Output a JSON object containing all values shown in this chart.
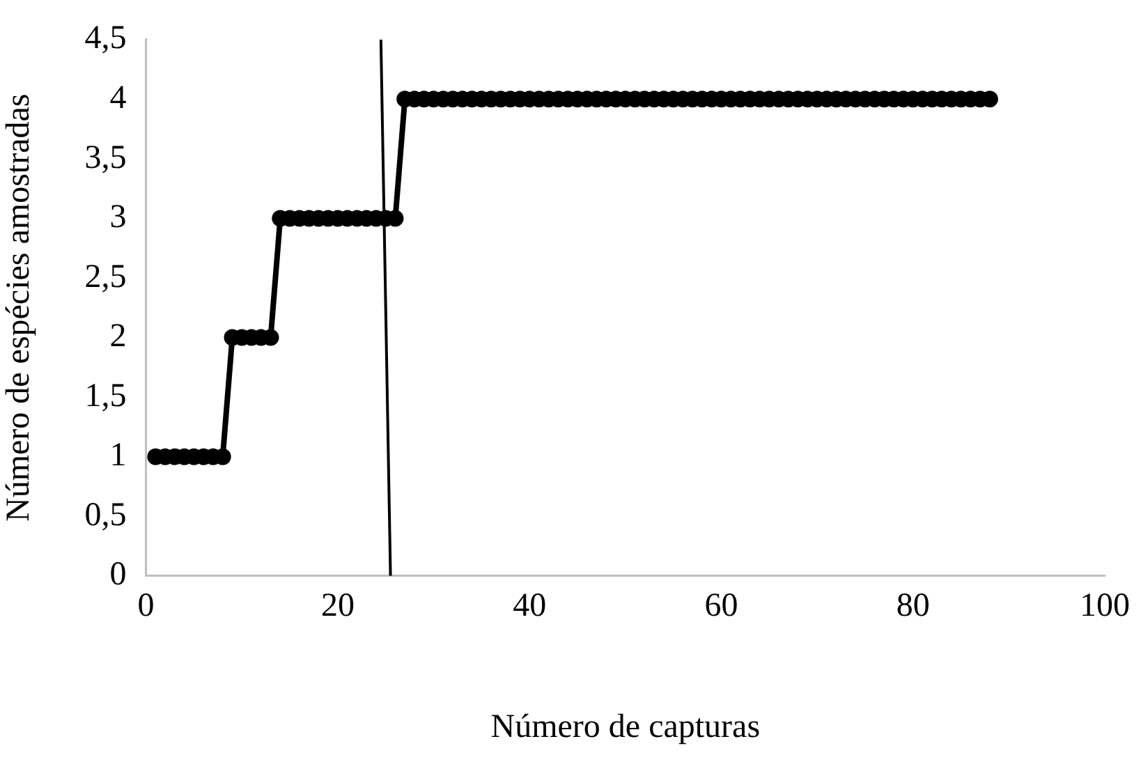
{
  "chart_data": {
    "type": "line",
    "xlabel": "Número de capturas",
    "ylabel": "Número de espécies amostradas",
    "xlim": [
      0,
      100
    ],
    "xticks": [
      0,
      20,
      40,
      60,
      80,
      100
    ],
    "ylim": [
      0,
      4.5
    ],
    "yticks": [
      0,
      {
        "value": 0.5,
        "label": "0,5"
      },
      1,
      {
        "value": 1.5,
        "label": "1,5"
      },
      2,
      {
        "value": 2.5,
        "label": "2,5"
      },
      3,
      {
        "value": 3.5,
        "label": "3,5"
      },
      4,
      {
        "value": 4.5,
        "label": "4,5"
      }
    ],
    "grid": false,
    "legend": false,
    "marker": "circle",
    "line_style": "solid",
    "series": [
      {
        "color": "#000000",
        "x": [
          1,
          2,
          3,
          4,
          5,
          6,
          7,
          8,
          9,
          10,
          11,
          12,
          13,
          14,
          15,
          16,
          17,
          18,
          19,
          20,
          21,
          22,
          23,
          24,
          25,
          26,
          27,
          28,
          29,
          30,
          31,
          32,
          33,
          34,
          35,
          36,
          37,
          38,
          39,
          40,
          41,
          42,
          43,
          44,
          45,
          46,
          47,
          48,
          49,
          50,
          51,
          52,
          53,
          54,
          55,
          56,
          57,
          58,
          59,
          60,
          61,
          62,
          63,
          64,
          65,
          66,
          67,
          68,
          69,
          70,
          71,
          72,
          73,
          74,
          75,
          76,
          77,
          78,
          79,
          80,
          81,
          82,
          83,
          84,
          85,
          86,
          87,
          88
        ],
        "values": [
          1,
          1,
          1,
          1,
          1,
          1,
          1,
          1,
          2,
          2,
          2,
          2,
          2,
          3,
          3,
          3,
          3,
          3,
          3,
          3,
          3,
          3,
          3,
          3,
          3,
          3,
          4,
          4,
          4,
          4,
          4,
          4,
          4,
          4,
          4,
          4,
          4,
          4,
          4,
          4,
          4,
          4,
          4,
          4,
          4,
          4,
          4,
          4,
          4,
          4,
          4,
          4,
          4,
          4,
          4,
          4,
          4,
          4,
          4,
          4,
          4,
          4,
          4,
          4,
          4,
          4,
          4,
          4,
          4,
          4,
          4,
          4,
          4,
          4,
          4,
          4,
          4,
          4,
          4,
          4,
          4,
          4,
          4,
          4,
          4,
          4,
          4,
          4
        ]
      },
      {
        "color": "#000000",
        "type": "line",
        "marker": "none",
        "x": [
          24.5,
          25.5
        ],
        "values": [
          4.5,
          0
        ]
      }
    ]
  }
}
